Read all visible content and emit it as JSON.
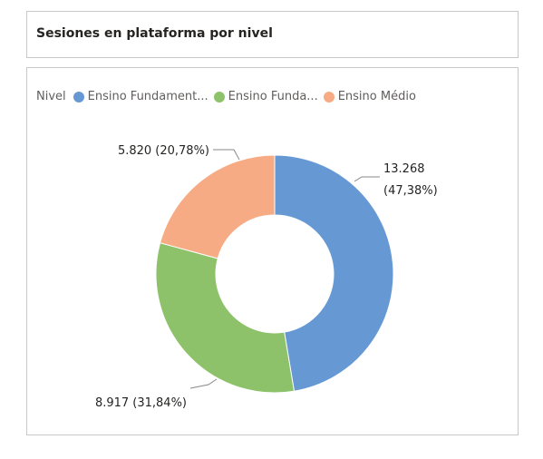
{
  "title": "Sesiones en plataforma por nivel",
  "legend": {
    "title": "Nivel",
    "items": [
      {
        "label": "Ensino Fundament...",
        "color": "#6699d4"
      },
      {
        "label": "Ensino Funda...",
        "color": "#8dc26a"
      },
      {
        "label": "Ensino Médio",
        "color": "#f7ab84"
      }
    ]
  },
  "chart_data": {
    "type": "pie",
    "variant": "donut",
    "title": "Sesiones en plataforma por nivel",
    "legend_title": "Nivel",
    "legend_position": "top-left",
    "slices": [
      {
        "name": "Ensino Fundament...",
        "value": 13268,
        "percent": 47.38,
        "label_value": "13.268",
        "label_percent": "(47,38%)",
        "color": "#6699d4"
      },
      {
        "name": "Ensino Funda...",
        "value": 8917,
        "percent": 31.84,
        "label_value": "8.917 (31,84%)",
        "label_percent": "",
        "color": "#8dc26a"
      },
      {
        "name": "Ensino Médio",
        "value": 5820,
        "percent": 20.78,
        "label_value": "5.820 (20,78%)",
        "label_percent": "",
        "color": "#f7ab84"
      }
    ]
  }
}
